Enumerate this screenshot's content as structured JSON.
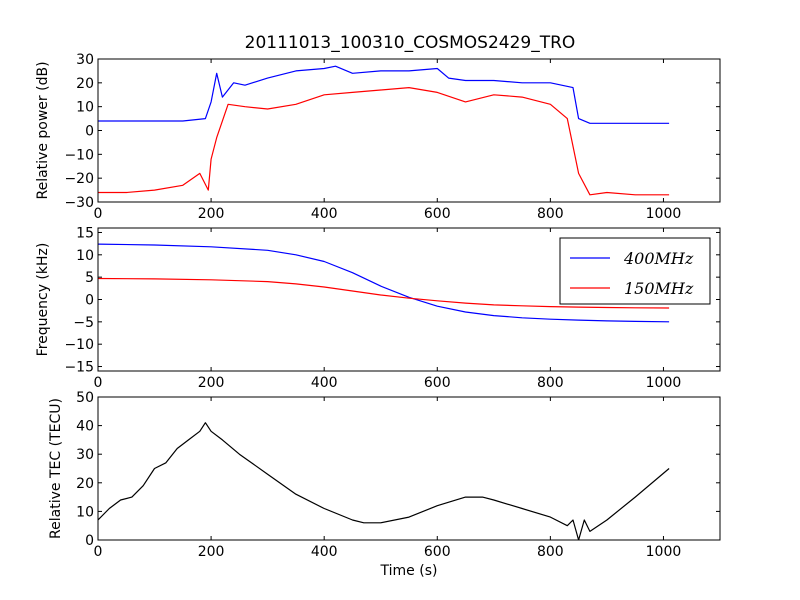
{
  "title": "20111013_100310_COSMOS2429_TRO",
  "colors": {
    "blue": "#0000ff",
    "red": "#ff0000",
    "black": "#000000"
  },
  "chart_data": [
    {
      "type": "line",
      "ylabel": "Relative power (dB)",
      "xlabel": "",
      "xlim": [
        0,
        1100
      ],
      "ylim": [
        -30,
        30
      ],
      "xticks": [
        "0",
        "200",
        "400",
        "600",
        "800",
        "1000"
      ],
      "yticks": [
        "−30",
        "−20",
        "−10",
        "0",
        "10",
        "20",
        "30"
      ],
      "grid": false,
      "series": [
        {
          "color": "#0000ff",
          "x": [
            0,
            50,
            100,
            150,
            190,
            200,
            210,
            220,
            240,
            260,
            300,
            350,
            400,
            420,
            450,
            500,
            550,
            600,
            620,
            650,
            700,
            750,
            800,
            840,
            850,
            870,
            900,
            950,
            1010
          ],
          "y": [
            4,
            4,
            4,
            4,
            5,
            12,
            24,
            14,
            20,
            19,
            22,
            25,
            26,
            27,
            24,
            25,
            25,
            26,
            22,
            21,
            21,
            20,
            20,
            18,
            5,
            3,
            3,
            3,
            3
          ]
        },
        {
          "color": "#ff0000",
          "x": [
            0,
            50,
            100,
            150,
            180,
            195,
            200,
            210,
            230,
            260,
            300,
            350,
            400,
            450,
            500,
            550,
            600,
            650,
            700,
            750,
            800,
            830,
            850,
            870,
            900,
            950,
            1010
          ],
          "y": [
            -26,
            -26,
            -25,
            -23,
            -18,
            -25,
            -12,
            -3,
            11,
            10,
            9,
            11,
            15,
            16,
            17,
            18,
            16,
            12,
            15,
            14,
            11,
            5,
            -18,
            -27,
            -26,
            -27,
            -27
          ]
        }
      ]
    },
    {
      "type": "line",
      "ylabel": "Frequency (kHz)",
      "xlabel": "",
      "xlim": [
        0,
        1100
      ],
      "ylim": [
        -16,
        16
      ],
      "xticks": [
        "0",
        "200",
        "400",
        "600",
        "800",
        "1000"
      ],
      "yticks": [
        "−15",
        "−10",
        "−5",
        "0",
        "5",
        "10",
        "15"
      ],
      "legend_placement": "top-right",
      "grid": false,
      "series": [
        {
          "name": "400MHz",
          "color": "#0000ff",
          "x": [
            0,
            100,
            200,
            300,
            350,
            400,
            450,
            500,
            550,
            600,
            650,
            700,
            750,
            800,
            850,
            900,
            950,
            1010
          ],
          "y": [
            12.4,
            12.2,
            11.8,
            11.0,
            10.0,
            8.5,
            6.0,
            3.0,
            0.5,
            -1.5,
            -2.8,
            -3.6,
            -4.1,
            -4.4,
            -4.6,
            -4.8,
            -4.9,
            -5.0
          ]
        },
        {
          "name": "150MHz",
          "color": "#ff0000",
          "x": [
            0,
            100,
            200,
            300,
            350,
            400,
            450,
            500,
            550,
            600,
            650,
            700,
            750,
            800,
            850,
            900,
            950,
            1010
          ],
          "y": [
            4.7,
            4.6,
            4.4,
            4.0,
            3.5,
            2.8,
            1.9,
            1.0,
            0.3,
            -0.3,
            -0.8,
            -1.2,
            -1.4,
            -1.6,
            -1.7,
            -1.8,
            -1.85,
            -1.9
          ]
        }
      ]
    },
    {
      "type": "line",
      "ylabel": "Relative TEC (TECU)",
      "xlabel": "Time (s)",
      "xlim": [
        0,
        1100
      ],
      "ylim": [
        0,
        50
      ],
      "xticks": [
        "0",
        "200",
        "400",
        "600",
        "800",
        "1000"
      ],
      "yticks": [
        "0",
        "10",
        "20",
        "30",
        "40",
        "50"
      ],
      "grid": false,
      "series": [
        {
          "color": "#000000",
          "x": [
            0,
            20,
            40,
            60,
            80,
            100,
            120,
            140,
            160,
            180,
            190,
            200,
            220,
            250,
            300,
            350,
            400,
            450,
            470,
            500,
            550,
            600,
            650,
            680,
            700,
            750,
            800,
            830,
            840,
            850,
            860,
            870,
            900,
            950,
            1010
          ],
          "y": [
            7,
            11,
            14,
            15,
            19,
            25,
            27,
            32,
            35,
            38,
            41,
            38,
            35,
            30,
            23,
            16,
            11,
            7,
            6,
            6,
            8,
            12,
            15,
            15,
            14,
            11,
            8,
            5,
            7,
            0,
            7,
            3,
            7,
            15,
            25
          ]
        }
      ]
    }
  ]
}
